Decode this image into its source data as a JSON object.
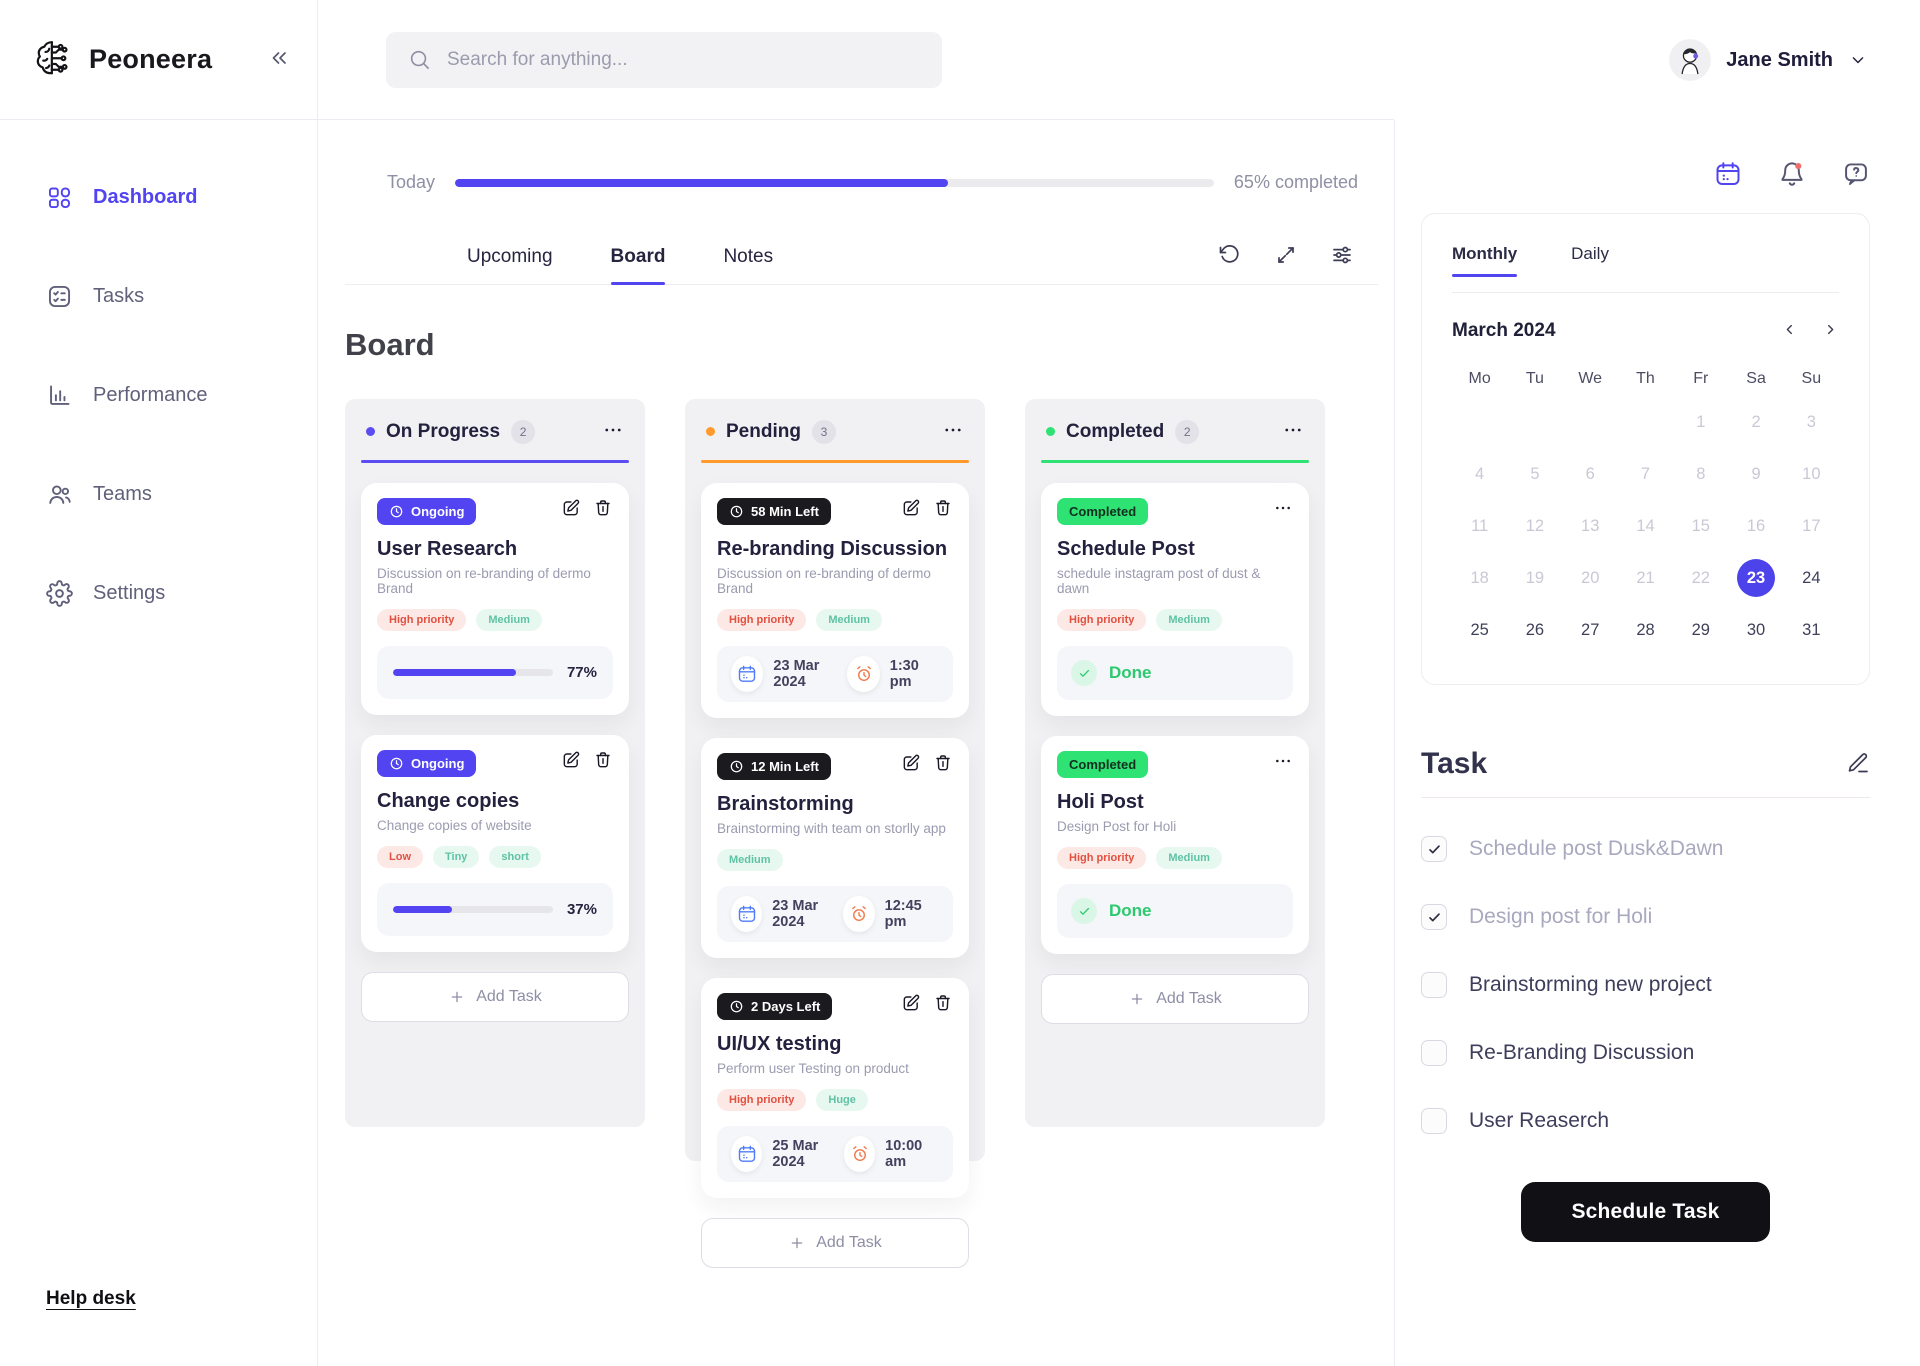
{
  "brand": {
    "name": "Peoneera"
  },
  "header": {
    "search_placeholder": "Search for anything...",
    "user_name": "Jane Smith"
  },
  "sidebar": {
    "items": [
      {
        "label": "Dashboard",
        "icon": "dashboard",
        "active": true
      },
      {
        "label": "Tasks",
        "icon": "tasks",
        "active": false
      },
      {
        "label": "Performance",
        "icon": "performance",
        "active": false
      },
      {
        "label": "Teams",
        "icon": "teams",
        "active": false
      },
      {
        "label": "Settings",
        "icon": "settings",
        "active": false
      }
    ],
    "help_link": "Help desk"
  },
  "progress": {
    "label": "Today",
    "percent": 65,
    "completed_text": "65% completed"
  },
  "main_tabs": [
    {
      "label": "Upcoming",
      "active": false
    },
    {
      "label": "Board",
      "active": true
    },
    {
      "label": "Notes",
      "active": false
    }
  ],
  "board": {
    "title": "Board",
    "columns": [
      {
        "name": "On Progress",
        "count": "2",
        "accent": "#5b4df1",
        "add_label": "Add Task",
        "cards": [
          {
            "badge": {
              "label": "Ongoing",
              "type": "ongoing"
            },
            "actions": "edit-trash",
            "title": "User Research",
            "description": "Discussion on re-branding of dermo Brand",
            "tags": [
              {
                "label": "High priority",
                "tone": "red"
              },
              {
                "label": "Medium",
                "tone": "green"
              }
            ],
            "footer": {
              "type": "progress",
              "percent": 77,
              "label": "77%"
            }
          },
          {
            "badge": {
              "label": "Ongoing",
              "type": "ongoing"
            },
            "actions": "edit-trash",
            "title": "Change copies",
            "description": "Change copies of website",
            "tags": [
              {
                "label": "Low",
                "tone": "red"
              },
              {
                "label": "Tiny",
                "tone": "green"
              },
              {
                "label": "short",
                "tone": "green"
              }
            ],
            "footer": {
              "type": "progress",
              "percent": 37,
              "label": "37%"
            }
          }
        ]
      },
      {
        "name": "Pending",
        "count": "3",
        "accent": "#ff9a2b",
        "add_label": "Add Task",
        "cards": [
          {
            "badge": {
              "label": "58 Min Left",
              "type": "time"
            },
            "actions": "edit-trash",
            "title": "Re-branding Discussion",
            "description": "Discussion on re-branding of dermo Brand",
            "tags": [
              {
                "label": "High priority",
                "tone": "red"
              },
              {
                "label": "Medium",
                "tone": "green"
              }
            ],
            "footer": {
              "type": "schedule",
              "date": "23 Mar 2024",
              "time": "1:30 pm"
            }
          },
          {
            "badge": {
              "label": "12 Min Left",
              "type": "time"
            },
            "actions": "edit-trash",
            "title": "Brainstorming",
            "description": "Brainstorming with team on storlly app",
            "tags": [
              {
                "label": "Medium",
                "tone": "green"
              }
            ],
            "footer": {
              "type": "schedule",
              "date": "23 Mar 2024",
              "time": "12:45 pm"
            }
          },
          {
            "badge": {
              "label": "2 Days Left",
              "type": "time"
            },
            "actions": "edit-trash",
            "title": "UI/UX testing",
            "description": "Perform user Testing on product",
            "tags": [
              {
                "label": "High priority",
                "tone": "red"
              },
              {
                "label": "Huge",
                "tone": "green"
              }
            ],
            "footer": {
              "type": "schedule",
              "date": "25 Mar 2024",
              "time": "10:00 am"
            }
          }
        ]
      },
      {
        "name": "Completed",
        "count": "2",
        "accent": "#2ee273",
        "add_label": "Add Task",
        "cards": [
          {
            "badge": {
              "label": "Completed",
              "type": "completed"
            },
            "actions": "menu",
            "title": "Schedule Post",
            "description": "schedule instagram post of dust & dawn",
            "tags": [
              {
                "label": "High priority",
                "tone": "red"
              },
              {
                "label": "Medium",
                "tone": "green"
              }
            ],
            "footer": {
              "type": "done",
              "label": "Done"
            }
          },
          {
            "badge": {
              "label": "Completed",
              "type": "completed"
            },
            "actions": "menu",
            "title": "Holi Post",
            "description": "Design Post for Holi",
            "tags": [
              {
                "label": "High priority",
                "tone": "red"
              },
              {
                "label": "Medium",
                "tone": "green"
              }
            ],
            "footer": {
              "type": "done",
              "label": "Done"
            }
          }
        ]
      }
    ]
  },
  "calendar": {
    "tabs": [
      {
        "label": "Monthly",
        "active": true
      },
      {
        "label": "Daily",
        "active": false
      }
    ],
    "month_label": "March 2024",
    "day_headers": [
      "Mo",
      "Tu",
      "We",
      "Th",
      "Fr",
      "Sa",
      "Su"
    ],
    "weeks": [
      [
        "",
        "",
        "",
        "",
        "1",
        "2",
        "3"
      ],
      [
        "4",
        "5",
        "6",
        "7",
        "8",
        "9",
        "10"
      ],
      [
        "11",
        "12",
        "13",
        "14",
        "15",
        "16",
        "17"
      ],
      [
        "18",
        "19",
        "20",
        "21",
        "22",
        "23",
        "24"
      ],
      [
        "25",
        "26",
        "27",
        "28",
        "29",
        "30",
        "31"
      ]
    ],
    "selected_day": "23",
    "dimmed_through": 22
  },
  "tasks_panel": {
    "title": "Task",
    "items": [
      {
        "label": "Schedule post Dusk&Dawn",
        "checked": true
      },
      {
        "label": "Design post for Holi",
        "checked": true
      },
      {
        "label": "Brainstorming new project",
        "checked": false
      },
      {
        "label": "Re-Branding Discussion",
        "checked": false
      },
      {
        "label": "User Reaserch",
        "checked": false
      }
    ],
    "schedule_button": "Schedule Task"
  },
  "colors": {
    "accent": "#5244f1",
    "pending_accent": "#ff9a2b",
    "completed_accent": "#2ee273",
    "tag_red_text": "#e25140",
    "tag_red_bg": "#fce8e5",
    "tag_green_text": "#5fc2a4",
    "tag_green_bg": "#e7f8f1",
    "selected_day_bg": "#4d43ea",
    "notification_dot": "#ef6e6e"
  }
}
